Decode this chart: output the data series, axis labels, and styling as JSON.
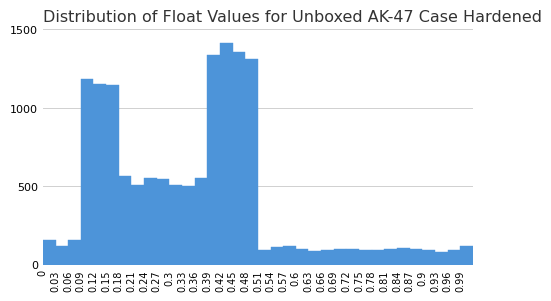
{
  "title": "Distribution of Float Values for Unboxed AK-47 Case Hardened",
  "bar_color": "#4d94d9",
  "background_color": "#ffffff",
  "grid_color": "#d0d0d0",
  "ylim": [
    0,
    1500
  ],
  "yticks": [
    0,
    500,
    1000,
    1500
  ],
  "bin_edges": [
    0.0,
    0.03,
    0.06,
    0.09,
    0.12,
    0.15,
    0.18,
    0.21,
    0.24,
    0.27,
    0.3,
    0.33,
    0.36,
    0.39,
    0.42,
    0.45,
    0.48,
    0.51,
    0.54,
    0.57,
    0.6,
    0.63,
    0.66,
    0.69,
    0.72,
    0.75,
    0.78,
    0.81,
    0.84,
    0.87,
    0.9,
    0.93,
    0.96,
    0.99,
    1.02
  ],
  "values": [
    155,
    120,
    155,
    1185,
    1150,
    1145,
    565,
    505,
    550,
    545,
    510,
    500,
    555,
    1340,
    1415,
    1355,
    1310,
    95,
    110,
    120,
    100,
    85,
    90,
    100,
    100,
    90,
    90,
    100,
    105,
    100,
    95,
    80,
    90,
    120
  ],
  "xtick_labels": [
    "0",
    "0.03",
    "0.06",
    "0.09",
    "0.12",
    "0.15",
    "0.18",
    "0.21",
    "0.24",
    "0.27",
    "0.3",
    "0.33",
    "0.36",
    "0.39",
    "0.42",
    "0.45",
    "0.48",
    "0.51",
    "0.54",
    "0.57",
    "0.6",
    "0.63",
    "0.66",
    "0.69",
    "0.72",
    "0.75",
    "0.78",
    "0.81",
    "0.84",
    "0.87",
    "0.9",
    "0.93",
    "0.96",
    "0.99"
  ],
  "title_fontsize": 11.5,
  "tick_fontsize": 7
}
